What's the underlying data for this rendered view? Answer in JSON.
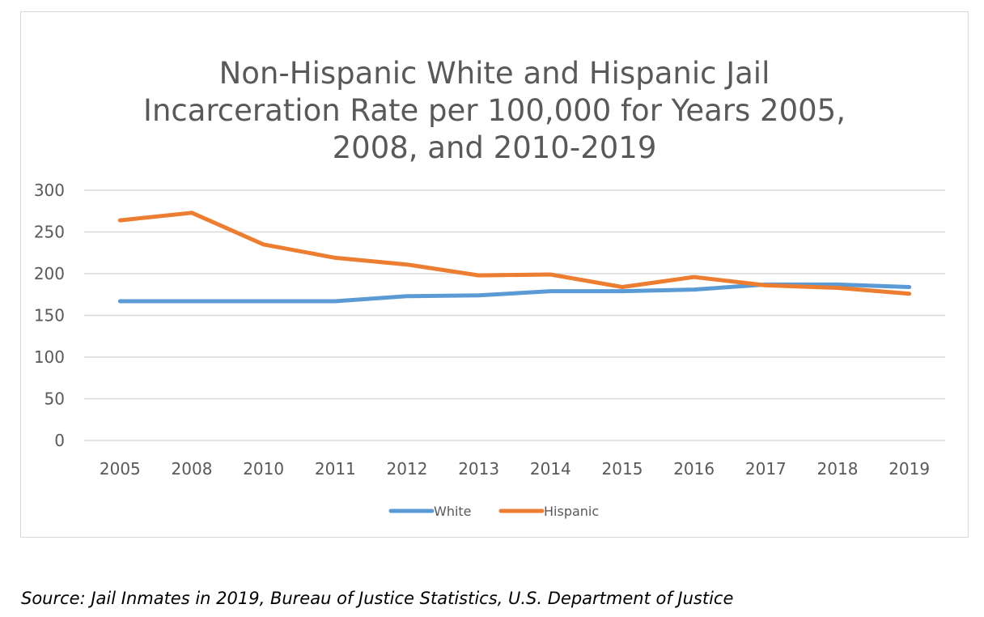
{
  "chart_data": {
    "type": "line",
    "title_lines": [
      "Non-Hispanic White and Hispanic Jail",
      "Incarceration Rate per 100,000 for Years 2005,",
      "2008, and 2010-2019"
    ],
    "title": "Non-Hispanic White and Hispanic Jail Incarceration Rate per 100,000 for Years 2005, 2008, and 2010-2019",
    "xlabel": "",
    "ylabel": "",
    "categories": [
      "2005",
      "2008",
      "2010",
      "2011",
      "2012",
      "2013",
      "2014",
      "2015",
      "2016",
      "2017",
      "2018",
      "2019"
    ],
    "ylim": [
      0,
      300
    ],
    "yticks": [
      0,
      50,
      100,
      150,
      200,
      250,
      300
    ],
    "grid": true,
    "legend_position": "bottom",
    "series": [
      {
        "name": "White",
        "color": "#5b9bd5",
        "values": [
          167,
          167,
          167,
          167,
          173,
          174,
          179,
          179,
          181,
          187,
          187,
          184
        ]
      },
      {
        "name": "Hispanic",
        "color": "#ed7d31",
        "values": [
          264,
          273,
          235,
          219,
          211,
          198,
          199,
          184,
          196,
          186,
          183,
          176
        ]
      }
    ]
  },
  "source": "Source: Jail Inmates in 2019, Bureau of Justice Statistics, U.S. Department of Justice"
}
